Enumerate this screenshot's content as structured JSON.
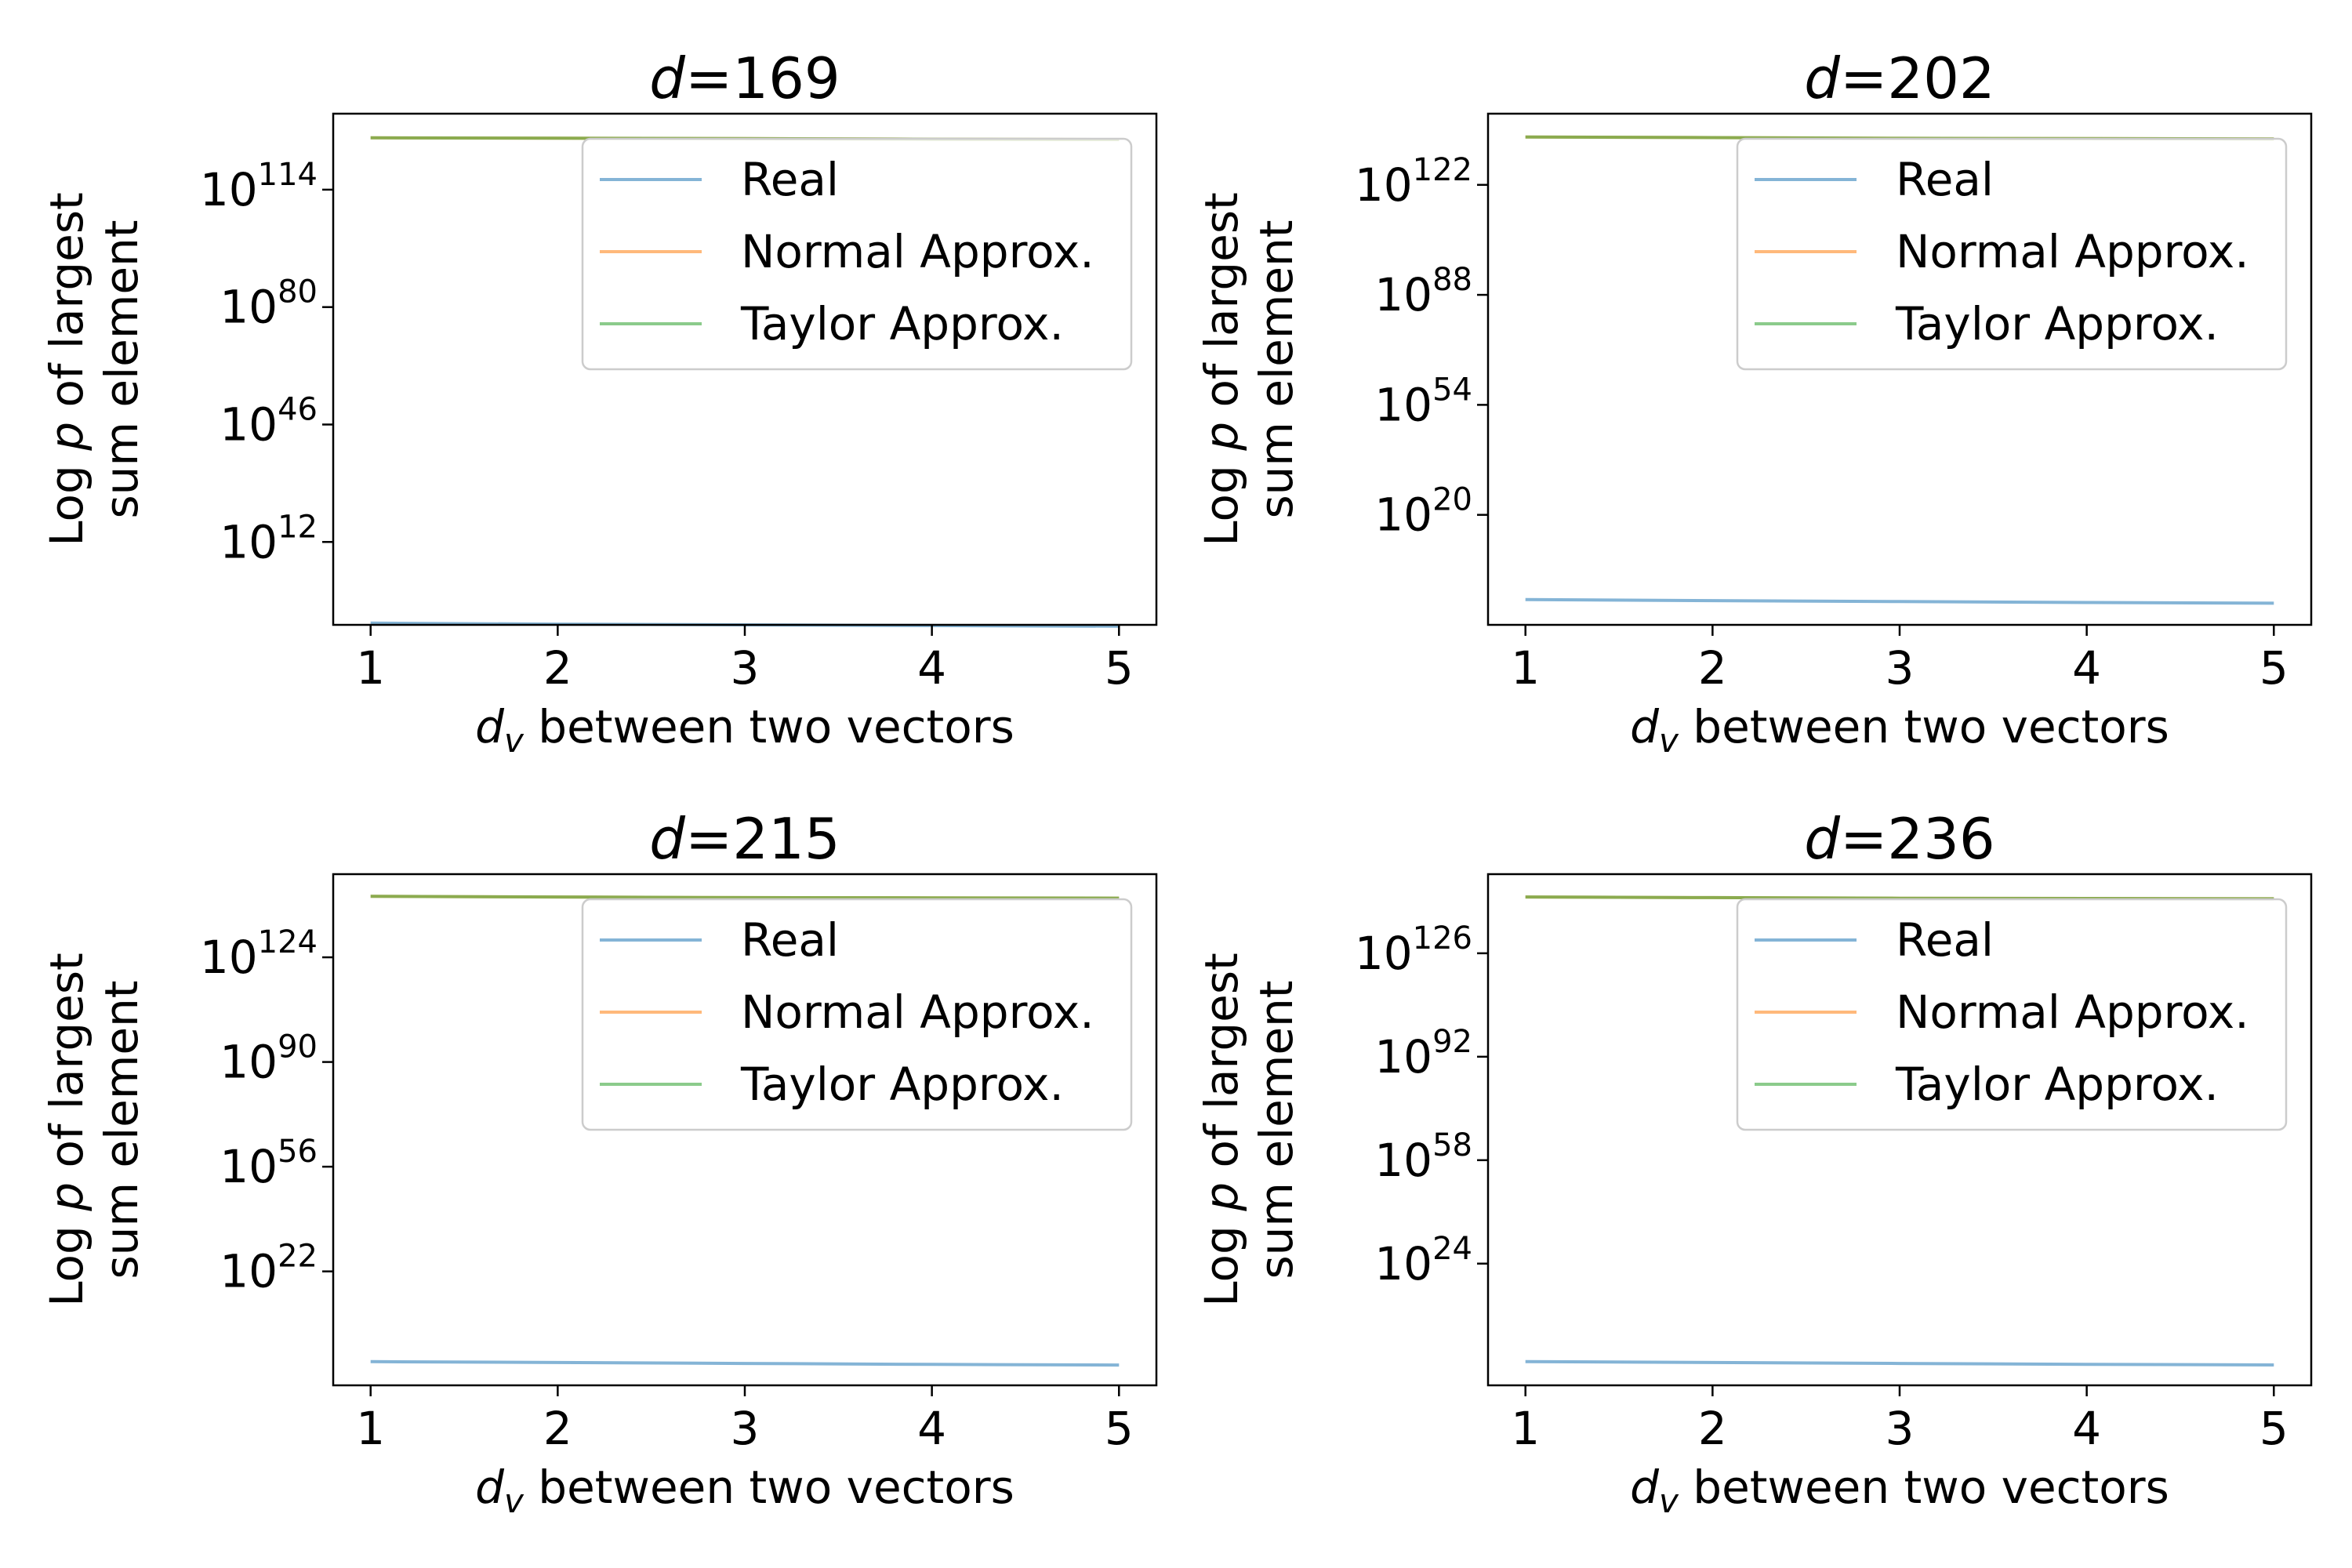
{
  "chart_data": [
    {
      "type": "line",
      "title_var": "d",
      "title_value": "169",
      "xlabel_var": "d",
      "xlabel_sub": "v",
      "xlabel_rest": " between two vectors",
      "ylabel_lines": [
        "Log p of largest",
        "sum element"
      ],
      "ylabel_italic": "p",
      "xlim": [
        0.8,
        5.2
      ],
      "xticks": [
        1,
        2,
        3,
        4,
        5
      ],
      "y_scale": "log",
      "y_exp_range": [
        -12,
        136
      ],
      "yticks_exp": [
        114,
        80,
        46,
        12
      ],
      "legend_position": "upper right",
      "grid": false,
      "x": [
        1,
        2,
        3,
        4,
        5
      ],
      "series": [
        {
          "name": "Real",
          "color": "#1f77b4",
          "y_exp": [
            -11.5,
            -11.8,
            -12.0,
            -12.2,
            -12.4
          ]
        },
        {
          "name": "Normal Approx.",
          "color": "#ff7f0e",
          "y_exp": [
            129,
            128.9,
            128.8,
            128.6,
            128.5
          ]
        },
        {
          "name": "Taylor Approx.",
          "color": "#2ca02c",
          "y_exp": [
            129,
            128.9,
            128.8,
            128.6,
            128.5
          ]
        }
      ]
    },
    {
      "type": "line",
      "title_var": "d",
      "title_value": "202",
      "xlabel_var": "d",
      "xlabel_sub": "v",
      "xlabel_rest": " between two vectors",
      "ylabel_lines": [
        "Log p of largest",
        "sum element"
      ],
      "ylabel_italic": "p",
      "xlim": [
        0.8,
        5.2
      ],
      "xticks": [
        1,
        2,
        3,
        4,
        5
      ],
      "y_scale": "log",
      "y_exp_range": [
        -14,
        144
      ],
      "yticks_exp": [
        122,
        88,
        54,
        20
      ],
      "legend_position": "upper right",
      "grid": false,
      "x": [
        1,
        2,
        3,
        4,
        5
      ],
      "series": [
        {
          "name": "Real",
          "color": "#1f77b4",
          "y_exp": [
            -6.2,
            -6.5,
            -6.8,
            -7.1,
            -7.3
          ]
        },
        {
          "name": "Normal Approx.",
          "color": "#ff7f0e",
          "y_exp": [
            136.8,
            136.6,
            136.4,
            136.3,
            136.2
          ]
        },
        {
          "name": "Taylor Approx.",
          "color": "#2ca02c",
          "y_exp": [
            136.8,
            136.6,
            136.4,
            136.3,
            136.2
          ]
        }
      ]
    },
    {
      "type": "line",
      "title_var": "d",
      "title_value": "215",
      "xlabel_var": "d",
      "xlabel_sub": "v",
      "xlabel_rest": " between two vectors",
      "ylabel_lines": [
        "Log p of largest",
        "sum element"
      ],
      "ylabel_italic": "p",
      "xlim": [
        0.8,
        5.2
      ],
      "xticks": [
        1,
        2,
        3,
        4,
        5
      ],
      "y_scale": "log",
      "y_exp_range": [
        -15,
        151
      ],
      "yticks_exp": [
        124,
        90,
        56,
        22
      ],
      "legend_position": "upper right",
      "grid": false,
      "x": [
        1,
        2,
        3,
        4,
        5
      ],
      "series": [
        {
          "name": "Real",
          "color": "#1f77b4",
          "y_exp": [
            -7.3,
            -7.6,
            -7.9,
            -8.2,
            -8.4
          ]
        },
        {
          "name": "Normal Approx.",
          "color": "#ff7f0e",
          "y_exp": [
            143.8,
            143.6,
            143.4,
            143.3,
            143.2
          ]
        },
        {
          "name": "Taylor Approx.",
          "color": "#2ca02c",
          "y_exp": [
            143.8,
            143.6,
            143.4,
            143.3,
            143.2
          ]
        }
      ]
    },
    {
      "type": "line",
      "title_var": "d",
      "title_value": "236",
      "xlabel_var": "d",
      "xlabel_sub": "v",
      "xlabel_rest": " between two vectors",
      "ylabel_lines": [
        "Log p of largest",
        "sum element"
      ],
      "ylabel_italic": "p",
      "xlim": [
        0.8,
        5.2
      ],
      "xticks": [
        1,
        2,
        3,
        4,
        5
      ],
      "y_scale": "log",
      "y_exp_range": [
        -16,
        152
      ],
      "yticks_exp": [
        126,
        92,
        58,
        24
      ],
      "legend_position": "upper right",
      "grid": false,
      "x": [
        1,
        2,
        3,
        4,
        5
      ],
      "series": [
        {
          "name": "Real",
          "color": "#1f77b4",
          "y_exp": [
            -8.2,
            -8.5,
            -8.8,
            -9.1,
            -9.3
          ]
        },
        {
          "name": "Normal Approx.",
          "color": "#ff7f0e",
          "y_exp": [
            144.5,
            144.3,
            144.1,
            144.0,
            143.9
          ]
        },
        {
          "name": "Taylor Approx.",
          "color": "#2ca02c",
          "y_exp": [
            144.5,
            144.3,
            144.1,
            144.0,
            143.9
          ]
        }
      ]
    }
  ]
}
